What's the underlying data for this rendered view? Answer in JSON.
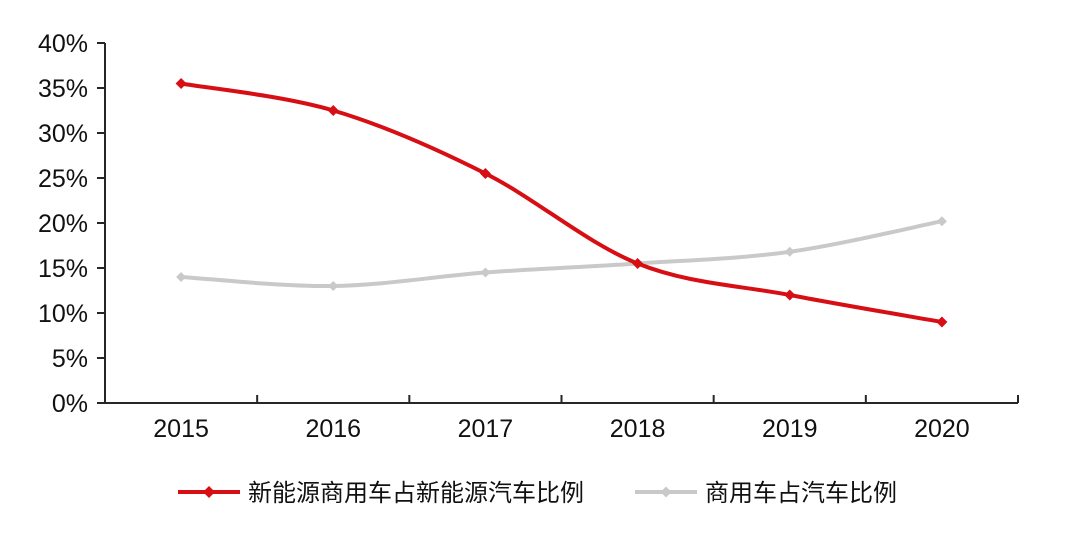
{
  "chart_data": {
    "type": "line",
    "title": "",
    "xlabel": "",
    "ylabel": "",
    "categories": [
      "2015",
      "2016",
      "2017",
      "2018",
      "2019",
      "2020"
    ],
    "series": [
      {
        "name": "新能源商用车占新能源汽车比例",
        "color": "#d70f14",
        "marker": "diamond",
        "marker_radius": 5.5,
        "line_width": 4,
        "values": [
          35.5,
          32.5,
          25.5,
          15.5,
          12,
          9
        ]
      },
      {
        "name": "商用车占汽车比例",
        "color": "#c9c9c9",
        "marker": "diamond",
        "marker_radius": 5,
        "line_width": 4,
        "values": [
          14,
          13,
          14.5,
          15.5,
          16.8,
          20.2
        ]
      }
    ],
    "ylim": [
      0,
      40
    ],
    "y_tick_step": 5,
    "y_tick_labels": [
      "0%",
      "5%",
      "10%",
      "15%",
      "20%",
      "25%",
      "30%",
      "35%",
      "40%"
    ],
    "grid": false,
    "smooth": true,
    "legend_position": "bottom",
    "style": {
      "axis_color": "#262626",
      "label_color": "#111111",
      "background": "#ffffff",
      "axis_label_font_size": 25,
      "legend_font_size": 24
    }
  }
}
